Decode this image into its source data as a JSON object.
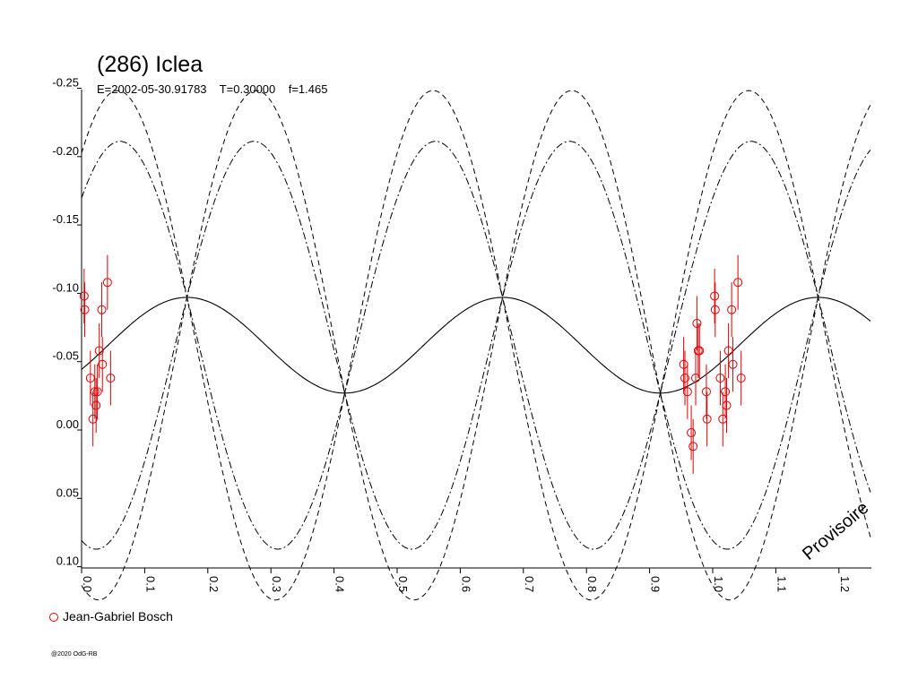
{
  "chart_data": {
    "type": "scatter",
    "title": "(286) Iclea",
    "subtitle": "E=2002-05-30.91783    T=0.30000    f=1.465",
    "xlim": [
      0.0,
      1.25
    ],
    "ylim": [
      -0.27,
      0.1
    ],
    "y_inverted": true,
    "x_ticks": [
      "0.0",
      "0.1",
      "0.2",
      "0.3",
      "0.4",
      "0.5",
      "0.6",
      "0.7",
      "0.8",
      "0.9",
      "1.0",
      "1.1",
      "1.2"
    ],
    "y_ticks": [
      "-0.25",
      "-0.20",
      "-0.15",
      "-0.10",
      "-0.05",
      "0.00",
      "0.05",
      "0.10"
    ],
    "curves": {
      "period_fraction": 0.5,
      "base_offset": -0.062,
      "base_amplitude": 0.035,
      "dashed_amplitude": 0.183,
      "dashdot_amplitude": 0.145,
      "dashed_convergence": 0.041,
      "dashdot_convergence": 0.043
    },
    "series": [
      {
        "name": "Jean-Gabriel Bosch",
        "color": "#e00000",
        "points": [
          {
            "x": 0.004,
            "y": -0.098,
            "err": 0.02
          },
          {
            "x": 0.005,
            "y": -0.088,
            "err": 0.02
          },
          {
            "x": 0.014,
            "y": -0.038,
            "err": 0.02
          },
          {
            "x": 0.018,
            "y": -0.008,
            "err": 0.02
          },
          {
            "x": 0.021,
            "y": -0.028,
            "err": 0.02
          },
          {
            "x": 0.023,
            "y": -0.018,
            "err": 0.02
          },
          {
            "x": 0.025,
            "y": -0.028,
            "err": 0.02
          },
          {
            "x": 0.028,
            "y": -0.058,
            "err": 0.02
          },
          {
            "x": 0.032,
            "y": -0.088,
            "err": 0.02
          },
          {
            "x": 0.033,
            "y": -0.048,
            "err": 0.02
          },
          {
            "x": 0.041,
            "y": -0.108,
            "err": 0.02
          },
          {
            "x": 0.046,
            "y": -0.038,
            "err": 0.02
          },
          {
            "x": 0.954,
            "y": -0.048,
            "err": 0.02
          },
          {
            "x": 0.956,
            "y": -0.038,
            "err": 0.02
          },
          {
            "x": 0.96,
            "y": -0.028,
            "err": 0.02
          },
          {
            "x": 0.966,
            "y": 0.002,
            "err": 0.02
          },
          {
            "x": 0.969,
            "y": 0.012,
            "err": 0.02
          },
          {
            "x": 0.973,
            "y": -0.038,
            "err": 0.02
          },
          {
            "x": 0.975,
            "y": -0.078,
            "err": 0.02
          },
          {
            "x": 0.977,
            "y": -0.058,
            "err": 0.02
          },
          {
            "x": 0.979,
            "y": -0.058,
            "err": 0.02
          },
          {
            "x": 0.99,
            "y": -0.028,
            "err": 0.02
          },
          {
            "x": 0.991,
            "y": -0.008,
            "err": 0.02
          },
          {
            "x": 1.003,
            "y": -0.098,
            "err": 0.02
          },
          {
            "x": 1.004,
            "y": -0.088,
            "err": 0.02
          },
          {
            "x": 1.012,
            "y": -0.038,
            "err": 0.02
          },
          {
            "x": 1.016,
            "y": -0.008,
            "err": 0.02
          },
          {
            "x": 1.02,
            "y": -0.028,
            "err": 0.02
          },
          {
            "x": 1.022,
            "y": -0.018,
            "err": 0.02
          },
          {
            "x": 1.025,
            "y": -0.058,
            "err": 0.02
          },
          {
            "x": 1.03,
            "y": -0.088,
            "err": 0.02
          },
          {
            "x": 1.032,
            "y": -0.048,
            "err": 0.02
          },
          {
            "x": 1.04,
            "y": -0.108,
            "err": 0.02
          },
          {
            "x": 1.045,
            "y": -0.038,
            "err": 0.02
          }
        ]
      }
    ],
    "legend": {
      "position": "bottom-left",
      "label": "Jean-Gabriel Bosch"
    },
    "grid": false
  },
  "footer": {
    "copyright": "@2020 OdG-RB",
    "watermark": "Provisoire"
  }
}
